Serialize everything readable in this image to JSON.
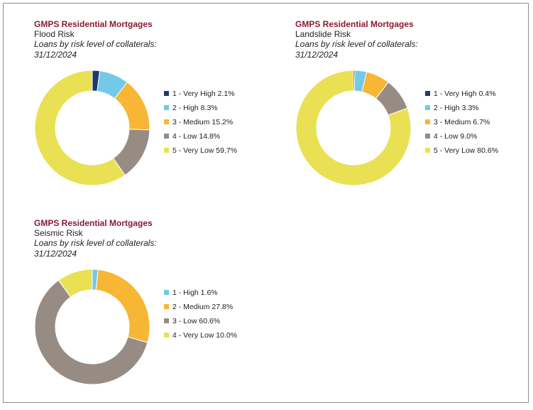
{
  "colors": {
    "brand_text": "#8a1a33",
    "very_high": "#1f3a6e",
    "high": "#74c8e8",
    "medium": "#f8b635",
    "low": "#978c84",
    "very_low": "#e9e153"
  },
  "chart_data": [
    {
      "type": "pie",
      "donut": true,
      "brand": "GMPS Residential Mortgages",
      "title": "Flood Risk",
      "subtitle": "Loans by risk level of collaterals: 31/12/2024",
      "legend_position": "right",
      "slices": [
        {
          "label": "1 - Very High",
          "value": 2.1,
          "display": "2.1%",
          "color": "#1f3a6e"
        },
        {
          "label": "2 - High",
          "value": 8.3,
          "display": "8.3%",
          "color": "#74c8e8"
        },
        {
          "label": "3 - Medium",
          "value": 15.2,
          "display": "15.2%",
          "color": "#f8b635"
        },
        {
          "label": "4 - Low",
          "value": 14.8,
          "display": "14.8%",
          "color": "#978c84"
        },
        {
          "label": "5 - Very Low",
          "value": 59.7,
          "display": "59.7%",
          "color": "#e9e153"
        }
      ]
    },
    {
      "type": "pie",
      "donut": true,
      "brand": "GMPS Residential Mortgages",
      "title": "Landslide Risk",
      "subtitle": "Loans by risk level of collaterals: 31/12/2024",
      "legend_position": "right",
      "slices": [
        {
          "label": "1 - Very High",
          "value": 0.4,
          "display": "0.4%",
          "color": "#1f3a6e"
        },
        {
          "label": "2 - High",
          "value": 3.3,
          "display": "3.3%",
          "color": "#74c8e8"
        },
        {
          "label": "3 - Medium",
          "value": 6.7,
          "display": "6.7%",
          "color": "#f8b635"
        },
        {
          "label": "4 - Low",
          "value": 9.0,
          "display": "9.0%",
          "color": "#978c84"
        },
        {
          "label": "5 - Very Low",
          "value": 80.6,
          "display": "80.6%",
          "color": "#e9e153"
        }
      ]
    },
    {
      "type": "pie",
      "donut": true,
      "brand": "GMPS Residential Mortgages",
      "title": "Seismic Risk",
      "subtitle": "Loans by risk level of collaterals: 31/12/2024",
      "legend_position": "right",
      "slices": [
        {
          "label": "1 - High",
          "value": 1.6,
          "display": "1.6%",
          "color": "#74c8e8"
        },
        {
          "label": "2 - Medium",
          "value": 27.8,
          "display": "27.8%",
          "color": "#f8b635"
        },
        {
          "label": "3 - Low",
          "value": 60.6,
          "display": "60.6%",
          "color": "#978c84"
        },
        {
          "label": "4 - Very Low",
          "value": 10.0,
          "display": "10.0%",
          "color": "#e9e153"
        }
      ]
    }
  ]
}
